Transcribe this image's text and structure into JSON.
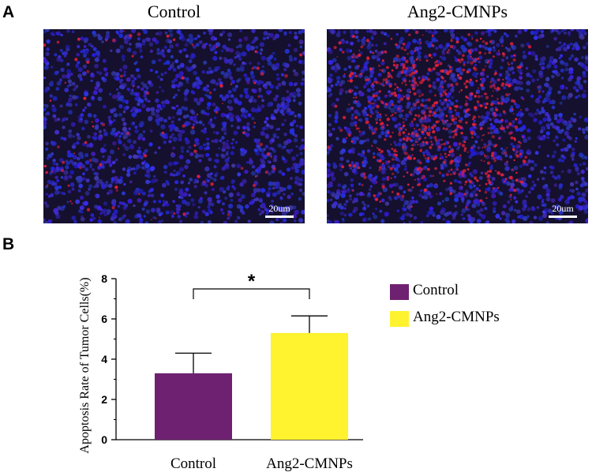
{
  "panel_a": {
    "letter": "A",
    "images": [
      {
        "title": "Control",
        "scale_label": "20um",
        "red_density": "low"
      },
      {
        "title": "Ang2-CMNPs",
        "scale_label": "20um",
        "red_density": "high"
      }
    ],
    "colors": {
      "nuclei": "#2a2ad0",
      "apoptotic": "#e0203a",
      "background": "#14102e"
    }
  },
  "panel_b": {
    "letter": "B",
    "significance": "*",
    "legend": [
      {
        "label": "Control",
        "color": "#6e2170"
      },
      {
        "label": "Ang2-CMNPs",
        "color": "#fff22e"
      }
    ]
  },
  "chart_data": {
    "type": "bar",
    "categories": [
      "Control",
      "Ang2-CMNPs"
    ],
    "values": [
      3.3,
      5.3
    ],
    "errors": [
      1.0,
      0.85
    ],
    "colors": [
      "#6e2170",
      "#fff22e"
    ],
    "ylabel": "Apoptosis Rate of Tumor Cells(%)",
    "xlabel": "",
    "ylim": [
      0,
      8
    ],
    "yticks": [
      0,
      2,
      4,
      6,
      8
    ],
    "minor_ticks": true,
    "grid": false,
    "legend_position": "right"
  }
}
